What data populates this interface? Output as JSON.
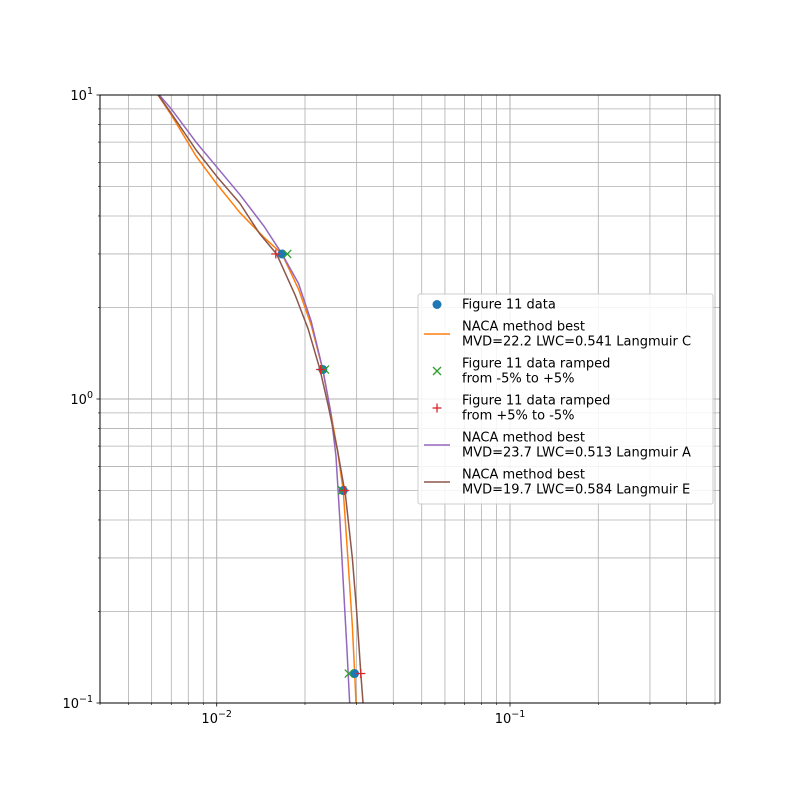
{
  "chart_data": {
    "type": "line",
    "title": "",
    "xlabel": "",
    "ylabel": "",
    "x_scale": "log",
    "y_scale": "log",
    "xlim": [
      0.004,
      0.52
    ],
    "ylim": [
      0.1,
      10
    ],
    "grid": "both major and minor",
    "legend_position": "center-right",
    "x_tick_labels": [
      {
        "value": 0.01,
        "base": "10",
        "exp": "−2"
      },
      {
        "value": 0.1,
        "base": "10",
        "exp": "−1"
      }
    ],
    "y_tick_labels": [
      {
        "value": 0.1,
        "base": "10",
        "exp": "−1"
      },
      {
        "value": 1,
        "base": "10",
        "exp": "0"
      },
      {
        "value": 10,
        "base": "10",
        "exp": "1"
      }
    ],
    "series": [
      {
        "name": "Figure 11 data",
        "kind": "markers",
        "marker": "circle",
        "color": "#1f77b4",
        "points": [
          [
            0.0167,
            3.0
          ],
          [
            0.023,
            1.25
          ],
          [
            0.027,
            0.5
          ],
          [
            0.0295,
            0.125
          ]
        ]
      },
      {
        "name": "NACA method best\nMVD=22.2 LWC=0.541 Langmuir C",
        "kind": "line",
        "color": "#ff7f0e",
        "points": [
          [
            0.0061,
            10.5
          ],
          [
            0.007,
            8.6
          ],
          [
            0.0085,
            6.3
          ],
          [
            0.01,
            5.1
          ],
          [
            0.012,
            4.1
          ],
          [
            0.0145,
            3.4
          ],
          [
            0.0167,
            3.0
          ],
          [
            0.019,
            2.3
          ],
          [
            0.021,
            1.75
          ],
          [
            0.023,
            1.25
          ],
          [
            0.0245,
            0.9
          ],
          [
            0.0258,
            0.68
          ],
          [
            0.027,
            0.5
          ],
          [
            0.028,
            0.3
          ],
          [
            0.029,
            0.18
          ],
          [
            0.0296,
            0.12
          ],
          [
            0.03,
            0.09
          ]
        ]
      },
      {
        "name": "Figure 11 data ramped\nfrom -5% to +5%",
        "kind": "markers",
        "marker": "x",
        "color": "#2ca02c",
        "points": [
          [
            0.0174,
            3.0
          ],
          [
            0.0234,
            1.25
          ],
          [
            0.0268,
            0.5
          ],
          [
            0.0282,
            0.125
          ]
        ]
      },
      {
        "name": "Figure 11 data ramped\nfrom +5% to -5%",
        "kind": "markers",
        "marker": "plus",
        "color": "#d62728",
        "points": [
          [
            0.0159,
            3.0
          ],
          [
            0.0226,
            1.25
          ],
          [
            0.0273,
            0.5
          ],
          [
            0.031,
            0.125
          ]
        ]
      },
      {
        "name": "NACA method best\nMVD=23.7 LWC=0.513 Langmuir A",
        "kind": "line",
        "color": "#9467bd",
        "points": [
          [
            0.0061,
            10.5
          ],
          [
            0.007,
            9.0
          ],
          [
            0.0085,
            7.0
          ],
          [
            0.01,
            5.8
          ],
          [
            0.012,
            4.7
          ],
          [
            0.0145,
            3.7
          ],
          [
            0.0167,
            3.0
          ],
          [
            0.019,
            2.4
          ],
          [
            0.021,
            1.8
          ],
          [
            0.023,
            1.25
          ],
          [
            0.0245,
            0.9
          ],
          [
            0.0255,
            0.65
          ],
          [
            0.0263,
            0.4
          ],
          [
            0.027,
            0.25
          ],
          [
            0.0278,
            0.15
          ],
          [
            0.0284,
            0.1
          ],
          [
            0.0287,
            0.09
          ]
        ]
      },
      {
        "name": "NACA method best\nMVD=19.7 LWC=0.584 Langmuir E",
        "kind": "line",
        "color": "#8c564b",
        "points": [
          [
            0.0061,
            10.5
          ],
          [
            0.007,
            8.7
          ],
          [
            0.0085,
            6.6
          ],
          [
            0.01,
            5.4
          ],
          [
            0.012,
            4.4
          ],
          [
            0.014,
            3.5
          ],
          [
            0.016,
            3.0
          ],
          [
            0.0185,
            2.2
          ],
          [
            0.0205,
            1.7
          ],
          [
            0.0225,
            1.25
          ],
          [
            0.024,
            0.95
          ],
          [
            0.0258,
            0.68
          ],
          [
            0.0275,
            0.48
          ],
          [
            0.029,
            0.3
          ],
          [
            0.03,
            0.2
          ],
          [
            0.031,
            0.125
          ],
          [
            0.0318,
            0.09
          ]
        ]
      }
    ]
  }
}
